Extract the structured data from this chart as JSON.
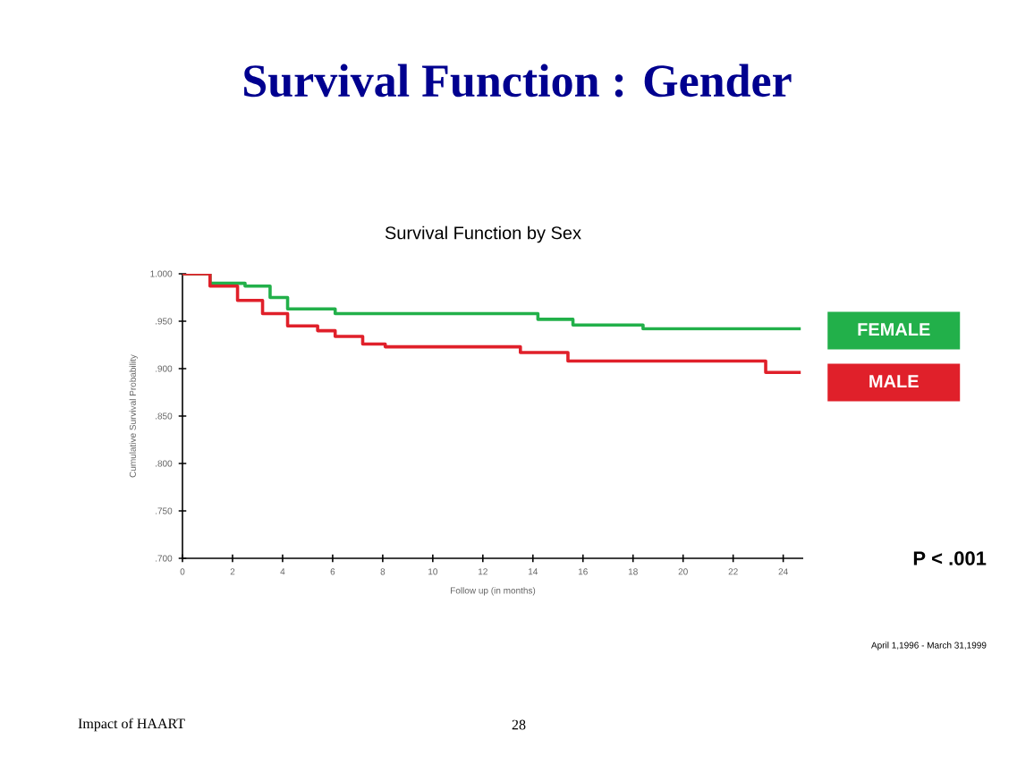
{
  "chart_data": {
    "type": "step",
    "title": "Survival  Function : Gender",
    "subtitle": "Survival Function by Sex",
    "xlabel": "Follow up (in months)",
    "ylabel": "Cumulative Survival Probability",
    "xlim": [
      0,
      24.8
    ],
    "xticks": [
      0,
      2,
      4,
      6,
      8,
      10,
      12,
      14,
      16,
      18,
      20,
      22,
      24
    ],
    "ylim": [
      0.7,
      1.0
    ],
    "yticks": [
      {
        "value": 1.0,
        "label": "1.000"
      },
      {
        "value": 0.95,
        "label": ".950"
      },
      {
        "value": 0.9,
        "label": ".900"
      },
      {
        "value": 0.85,
        "label": ".850"
      },
      {
        "value": 0.8,
        "label": ".800"
      },
      {
        "value": 0.75,
        "label": ".750"
      },
      {
        "value": 0.7,
        "label": ".700"
      }
    ],
    "series": [
      {
        "name": "FEMALE",
        "color": "#22b04a",
        "x": [
          0,
          1.1,
          2.5,
          3.5,
          4.2,
          6.1,
          14.2,
          15.6,
          18.4,
          24.7
        ],
        "values": [
          1.0,
          0.99,
          0.987,
          0.975,
          0.963,
          0.958,
          0.952,
          0.946,
          0.942,
          0.942
        ]
      },
      {
        "name": "MALE",
        "color": "#e0202a",
        "x": [
          0,
          1.1,
          2.2,
          3.2,
          4.2,
          5.4,
          6.1,
          7.2,
          8.1,
          13.5,
          15.4,
          23.3,
          24.7
        ],
        "values": [
          1.0,
          0.987,
          0.972,
          0.958,
          0.945,
          0.94,
          0.934,
          0.926,
          0.923,
          0.917,
          0.908,
          0.896,
          0.896
        ]
      }
    ],
    "legend": "right",
    "grid": false,
    "marker": "none",
    "line_style": "solid",
    "annotations": [
      "P < .001",
      "April 1,1996 - March 31,1999",
      "Impact of HAART",
      "28"
    ]
  }
}
